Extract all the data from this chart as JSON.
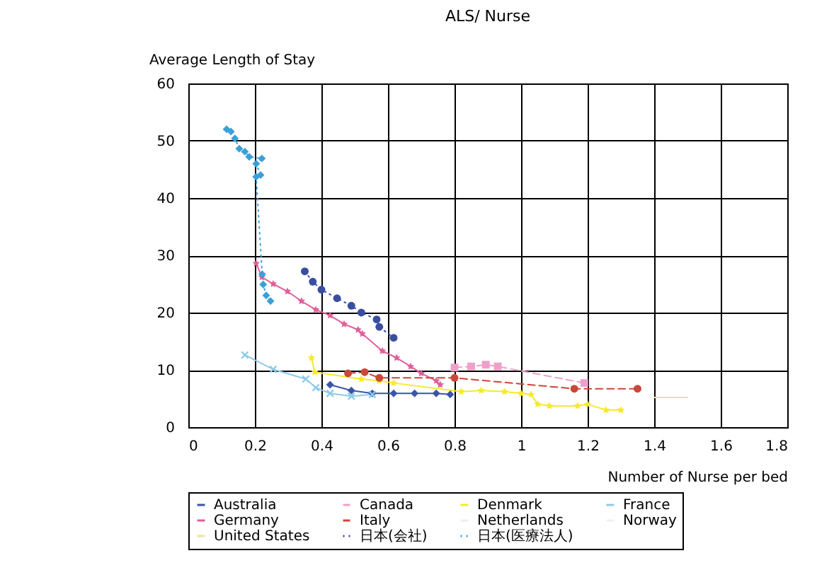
{
  "chart_data": {
    "type": "line",
    "title": "ALS/ Nurse",
    "xlabel": "Number of Nurse per bed",
    "ylabel": "Average Length of Stay",
    "xlim": [
      0,
      1.8
    ],
    "xticks": [
      0,
      0.2,
      0.4,
      0.6,
      0.8,
      1,
      1.2,
      1.4,
      1.6,
      1.8
    ],
    "ylim": [
      0,
      60
    ],
    "yticks": [
      0,
      10,
      20,
      30,
      40,
      50,
      60
    ],
    "grid": true,
    "legend": "bottom",
    "series": [
      {
        "name": "Australia",
        "color": "#3a55a8",
        "marker": "diamond",
        "line_style": "solid",
        "x": [
          0.426,
          0.49,
          0.553,
          0.617,
          0.68,
          0.745,
          0.787
        ],
        "values": [
          7.4,
          6.4,
          5.9,
          5.9,
          5.9,
          5.9,
          5.7
        ]
      },
      {
        "name": "Canada",
        "color": "#f0a0c8",
        "marker": "square",
        "line_style": "dashed",
        "x": [
          0.8,
          0.85,
          0.894,
          0.93,
          1.19
        ],
        "values": [
          10.4,
          10.6,
          10.9,
          10.6,
          7.7
        ]
      },
      {
        "name": "Denmark",
        "color": "#f5ea2a",
        "marker": "star",
        "line_style": "solid",
        "x": [
          0.37,
          0.38,
          0.52,
          0.574,
          0.617,
          0.82,
          0.88,
          0.95,
          1.0,
          1.03,
          1.05,
          1.085,
          1.17,
          1.2,
          1.255,
          1.3
        ],
        "values": [
          12.1,
          9.6,
          8.4,
          8.1,
          7.7,
          6.2,
          6.4,
          6.2,
          5.9,
          5.7,
          4,
          3.7,
          3.7,
          4,
          3,
          3
        ]
      },
      {
        "name": "France",
        "color": "#8ccbe8",
        "marker": "cross",
        "line_style": "solid",
        "x": [
          0.17,
          0.255,
          0.353,
          0.383,
          0.426,
          0.49,
          0.553
        ],
        "values": [
          12.6,
          10.1,
          8.4,
          6.9,
          5.9,
          5.4,
          5.7
        ]
      },
      {
        "name": "Germany",
        "color": "#e0609a",
        "marker": "star",
        "line_style": "solid",
        "x": [
          0.204,
          0.221,
          0.255,
          0.298,
          0.34,
          0.383,
          0.426,
          0.468,
          0.51,
          0.523,
          0.583,
          0.626,
          0.668,
          0.7,
          0.745,
          0.757
        ],
        "values": [
          28.6,
          26.2,
          25,
          23.7,
          22,
          20.5,
          19.5,
          18,
          17,
          16.3,
          13.3,
          12.1,
          10.6,
          9.4,
          8.1,
          7.4
        ]
      },
      {
        "name": "Italy",
        "color": "#c8483a",
        "marker": "circle",
        "line_style": "dashed",
        "x": [
          0.48,
          0.53,
          0.574,
          0.8,
          1.16,
          1.35
        ],
        "values": [
          9.4,
          9.6,
          8.6,
          8.6,
          6.7,
          6.7
        ]
      },
      {
        "name": "Netherlands",
        "color": "#eeeeee"
      },
      {
        "name": "Norway",
        "color": "#f0f0f0"
      },
      {
        "name": "United States",
        "color": "#ebe4a0",
        "marker": "none",
        "line_style": "solid",
        "x": [
          1.4,
          1.45,
          1.5
        ],
        "values": [
          5.2,
          5.2,
          5.2
        ]
      },
      {
        "name": "日本(会社)",
        "color": "#3a4ea0",
        "marker": "circle",
        "line_style": "dotted",
        "x": [
          0.35,
          0.374,
          0.4,
          0.447,
          0.49,
          0.52,
          0.566,
          0.574,
          0.617
        ],
        "values": [
          27.2,
          25.4,
          24,
          22.5,
          21.2,
          20,
          18.8,
          17.5,
          15.6
        ]
      },
      {
        "name": "日本(医療法人)",
        "color": "#3aa0d8",
        "marker": "diamond",
        "line_style": "dotted",
        "x": [
          0.115,
          0.128,
          0.14,
          0.153,
          0.17,
          0.183,
          0.221,
          0.204,
          0.217,
          0.204,
          0.222,
          0.225,
          0.234,
          0.247
        ],
        "values": [
          52,
          51.6,
          50.4,
          48.6,
          48.1,
          47.2,
          46.9,
          46,
          44,
          43.7,
          26.7,
          24.9,
          23,
          22
        ]
      }
    ]
  }
}
